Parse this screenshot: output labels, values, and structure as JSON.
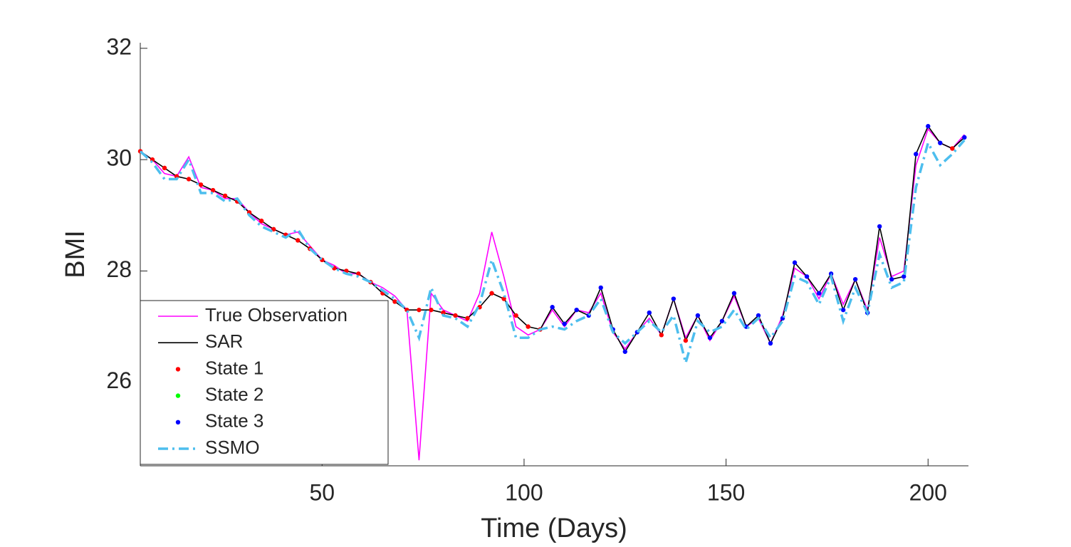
{
  "chart_data": {
    "type": "line",
    "xlabel": "Time (Days)",
    "ylabel": "BMI",
    "xlim": [
      5,
      210
    ],
    "ylim": [
      24.5,
      32.1
    ],
    "xticks": [
      50,
      100,
      150,
      200
    ],
    "yticks": [
      26,
      28,
      30,
      32
    ],
    "legend": "southwest",
    "series": [
      {
        "name": "True Observation",
        "color": "#ff00ff",
        "mode": "line",
        "linestyle": "-",
        "x": [
          5,
          8,
          11,
          14,
          17,
          20,
          23,
          26,
          29,
          32,
          35,
          38,
          41,
          44,
          47,
          50,
          53,
          56,
          59,
          62,
          65,
          68,
          71,
          74,
          77,
          80,
          83,
          86,
          89,
          92,
          95,
          98,
          101,
          104,
          107,
          110,
          113,
          116,
          119,
          122,
          125,
          128,
          131,
          134,
          137,
          140,
          143,
          146,
          149,
          152,
          155,
          158,
          161,
          164,
          167,
          170,
          173,
          176,
          179,
          182,
          185,
          188,
          191,
          194,
          197,
          200,
          203,
          206,
          209
        ],
        "values": [
          30.15,
          30.0,
          29.75,
          29.7,
          30.05,
          29.5,
          29.45,
          29.3,
          29.3,
          29.05,
          28.85,
          28.75,
          28.65,
          28.7,
          28.45,
          28.2,
          28.1,
          27.95,
          27.95,
          27.8,
          27.7,
          27.55,
          27.3,
          24.6,
          27.6,
          27.3,
          27.2,
          27.1,
          27.6,
          28.7,
          27.9,
          27.0,
          26.85,
          26.95,
          27.3,
          27.0,
          27.3,
          27.25,
          27.6,
          26.9,
          26.6,
          26.9,
          27.15,
          26.85,
          27.5,
          26.8,
          27.2,
          26.75,
          27.1,
          27.55,
          27.0,
          27.15,
          26.7,
          27.2,
          28.05,
          27.9,
          27.5,
          27.95,
          27.4,
          27.85,
          27.3,
          28.6,
          27.9,
          28.0,
          29.9,
          30.55,
          30.3,
          30.2,
          30.45
        ]
      },
      {
        "name": "SAR",
        "color": "#000000",
        "mode": "line",
        "linestyle": "-",
        "x": [
          5,
          8,
          11,
          14,
          17,
          20,
          23,
          26,
          29,
          32,
          35,
          38,
          41,
          44,
          47,
          50,
          53,
          56,
          59,
          62,
          65,
          68,
          71,
          74,
          77,
          80,
          83,
          86,
          89,
          92,
          95,
          98,
          101,
          104,
          107,
          110,
          113,
          116,
          119,
          122,
          125,
          128,
          131,
          134,
          137,
          140,
          143,
          146,
          149,
          152,
          155,
          158,
          161,
          164,
          167,
          170,
          173,
          176,
          179,
          182,
          185,
          188,
          191,
          194,
          197,
          200,
          203,
          206,
          209
        ],
        "values": [
          30.15,
          30.0,
          29.85,
          29.7,
          29.65,
          29.55,
          29.45,
          29.35,
          29.25,
          29.05,
          28.9,
          28.75,
          28.65,
          28.55,
          28.4,
          28.2,
          28.05,
          28.0,
          27.95,
          27.8,
          27.6,
          27.45,
          27.3,
          27.3,
          27.3,
          27.25,
          27.2,
          27.15,
          27.35,
          27.6,
          27.5,
          27.2,
          27.0,
          26.95,
          27.35,
          27.05,
          27.3,
          27.2,
          27.7,
          26.95,
          26.55,
          26.9,
          27.25,
          26.85,
          27.5,
          26.75,
          27.2,
          26.8,
          27.1,
          27.6,
          27.0,
          27.2,
          26.7,
          27.15,
          28.15,
          27.9,
          27.6,
          27.95,
          27.3,
          27.85,
          27.25,
          28.8,
          27.85,
          27.9,
          30.1,
          30.6,
          30.3,
          30.2,
          30.4
        ]
      },
      {
        "name": "State 1",
        "color": "#ff0000",
        "mode": "marker",
        "x": [
          5,
          8,
          11,
          14,
          17,
          20,
          23,
          26,
          29,
          32,
          35,
          38,
          41,
          44,
          47,
          50,
          53,
          56,
          59,
          62,
          65,
          68,
          71,
          74,
          77,
          80,
          83,
          86,
          89,
          92,
          95,
          98,
          101,
          104,
          134,
          140,
          206
        ],
        "values": [
          30.15,
          30.0,
          29.85,
          29.7,
          29.65,
          29.55,
          29.45,
          29.35,
          29.25,
          29.05,
          28.9,
          28.75,
          28.65,
          28.55,
          28.4,
          28.2,
          28.05,
          28.0,
          27.95,
          27.8,
          27.6,
          27.45,
          27.3,
          27.3,
          27.3,
          27.25,
          27.2,
          27.15,
          27.35,
          27.6,
          27.5,
          27.2,
          27.0,
          26.95,
          26.85,
          26.75,
          30.2
        ]
      },
      {
        "name": "State 2",
        "color": "#00ff00",
        "mode": "marker",
        "x": [],
        "values": []
      },
      {
        "name": "State 3",
        "color": "#0000ff",
        "mode": "marker",
        "x": [
          107,
          110,
          113,
          116,
          119,
          122,
          125,
          128,
          131,
          137,
          143,
          146,
          149,
          152,
          155,
          158,
          161,
          164,
          167,
          170,
          173,
          176,
          179,
          182,
          185,
          188,
          191,
          194,
          197,
          200,
          203,
          209
        ],
        "values": [
          27.35,
          27.05,
          27.3,
          27.2,
          27.7,
          26.95,
          26.55,
          26.9,
          27.25,
          27.5,
          27.2,
          26.8,
          27.1,
          27.6,
          27.0,
          27.2,
          26.7,
          27.15,
          28.15,
          27.9,
          27.6,
          27.95,
          27.3,
          27.85,
          27.25,
          28.8,
          27.85,
          27.9,
          30.1,
          30.6,
          30.3,
          30.4
        ]
      },
      {
        "name": "SSMO",
        "color": "#4dbeee",
        "mode": "line",
        "linestyle": "-.",
        "x": [
          5,
          8,
          11,
          14,
          17,
          20,
          23,
          26,
          29,
          32,
          35,
          38,
          41,
          44,
          47,
          50,
          53,
          56,
          59,
          62,
          65,
          68,
          71,
          74,
          77,
          80,
          83,
          86,
          89,
          92,
          95,
          98,
          101,
          104,
          107,
          110,
          113,
          116,
          119,
          122,
          125,
          128,
          131,
          134,
          137,
          140,
          143,
          146,
          149,
          152,
          155,
          158,
          161,
          164,
          167,
          170,
          173,
          176,
          179,
          182,
          185,
          188,
          191,
          194,
          197,
          200,
          203,
          206,
          209
        ],
        "values": [
          30.15,
          29.95,
          29.65,
          29.65,
          30.0,
          29.4,
          29.4,
          29.25,
          29.3,
          29.0,
          28.8,
          28.7,
          28.6,
          28.75,
          28.4,
          28.2,
          28.05,
          27.95,
          27.9,
          27.8,
          27.65,
          27.5,
          27.3,
          26.8,
          27.7,
          27.2,
          27.15,
          27.0,
          27.4,
          28.2,
          27.6,
          26.8,
          26.8,
          26.95,
          27.0,
          26.95,
          27.1,
          27.2,
          27.5,
          26.9,
          26.7,
          26.9,
          27.1,
          26.9,
          27.2,
          26.35,
          27.1,
          26.9,
          27.0,
          27.3,
          26.95,
          27.15,
          26.8,
          27.1,
          27.9,
          27.8,
          27.4,
          27.9,
          27.1,
          27.7,
          27.25,
          28.3,
          27.7,
          27.8,
          29.5,
          30.3,
          29.9,
          30.1,
          30.35
        ]
      }
    ]
  }
}
